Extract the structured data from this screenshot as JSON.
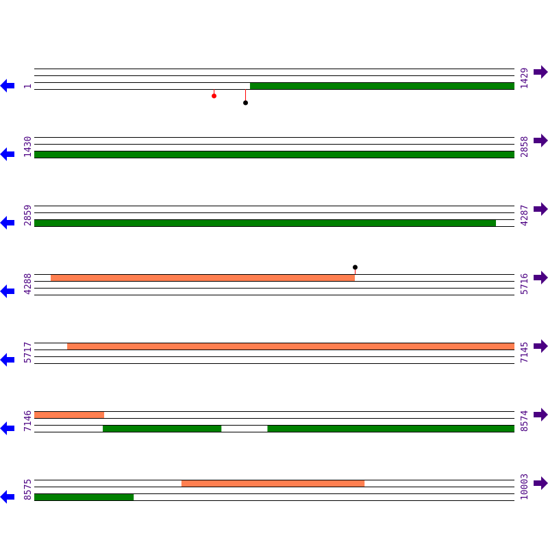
{
  "colors": {
    "line": "#000000",
    "forward_feature": "#008000",
    "reverse_feature": "#ff7f50",
    "label": "#4b0082",
    "left_arrow": "#0000ff",
    "right_arrow": "#4b0082",
    "marker_stem": "#ff0000",
    "marker_red": "#ff0000",
    "marker_black": "#000000"
  },
  "icons": {
    "left": "arrow-left-icon",
    "right": "arrow-right-icon"
  },
  "rows": [
    {
      "start": "1",
      "end": "1429",
      "features": [
        {
          "band": 2,
          "from": 643,
          "to": 1429,
          "color": "forward_feature"
        }
      ],
      "markers": [
        {
          "pos": 535,
          "length": 1,
          "color": "marker_red",
          "side": "below"
        },
        {
          "pos": 629,
          "length": 2,
          "color": "marker_black",
          "side": "below"
        }
      ]
    },
    {
      "start": "1430",
      "end": "2858",
      "features": [
        {
          "band": 2,
          "from": 1430,
          "to": 2858,
          "color": "forward_feature"
        }
      ],
      "markers": []
    },
    {
      "start": "2859",
      "end": "4287",
      "features": [
        {
          "band": 2,
          "from": 2859,
          "to": 4233,
          "color": "forward_feature"
        }
      ],
      "markers": []
    },
    {
      "start": "4288",
      "end": "5716",
      "features": [
        {
          "band": 0,
          "from": 4337,
          "to": 5242,
          "color": "reverse_feature"
        }
      ],
      "markers": [
        {
          "pos": 5242,
          "length": 1,
          "color": "marker_black",
          "side": "above"
        }
      ]
    },
    {
      "start": "5717",
      "end": "7145",
      "features": [
        {
          "band": 0,
          "from": 5815,
          "to": 7145,
          "color": "reverse_feature"
        }
      ],
      "markers": []
    },
    {
      "start": "7146",
      "end": "8574",
      "features": [
        {
          "band": 0,
          "from": 7146,
          "to": 7354,
          "color": "reverse_feature"
        },
        {
          "band": 2,
          "from": 7350,
          "to": 7703,
          "color": "forward_feature"
        },
        {
          "band": 2,
          "from": 7840,
          "to": 8574,
          "color": "forward_feature"
        }
      ],
      "markers": []
    },
    {
      "start": "8575",
      "end": "10003",
      "features": [
        {
          "band": 0,
          "from": 9013,
          "to": 9558,
          "color": "reverse_feature"
        },
        {
          "band": 2,
          "from": 8575,
          "to": 8871,
          "color": "forward_feature"
        }
      ],
      "markers": []
    }
  ]
}
